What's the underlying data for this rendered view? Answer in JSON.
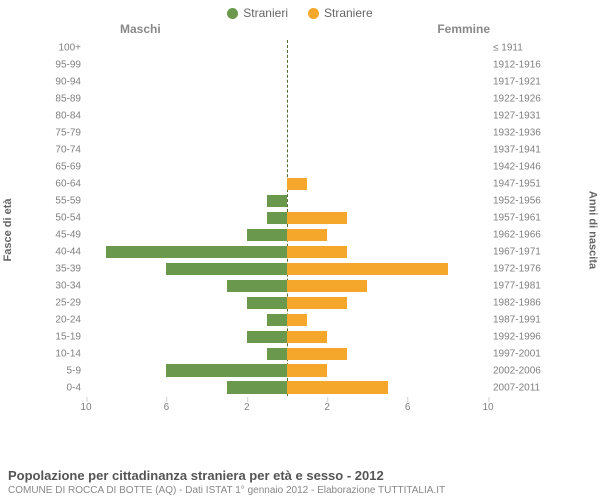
{
  "legend": {
    "male": "Stranieri",
    "female": "Straniere",
    "male_color": "#6a994e",
    "female_color": "#f4a72a"
  },
  "subtitles": {
    "left": "Maschi",
    "right": "Femmine"
  },
  "axis_labels": {
    "left": "Fasce di età",
    "right": "Anni di nascita"
  },
  "footer": {
    "title": "Popolazione per cittadinanza straniera per età e sesso - 2012",
    "sub": "COMUNE DI ROCCA DI BOTTE (AQ) - Dati ISTAT 1° gennaio 2012 - Elaborazione TUTTITALIA.IT"
  },
  "chart": {
    "type": "population-pyramid",
    "xlim": 10,
    "xticks": [
      10,
      6,
      2,
      2,
      6,
      10
    ],
    "background_color": "#ffffff",
    "grid_color": "#e0e0e0",
    "rows": [
      {
        "age": "100+",
        "birth": "≤ 1911",
        "m": 0,
        "f": 0
      },
      {
        "age": "95-99",
        "birth": "1912-1916",
        "m": 0,
        "f": 0
      },
      {
        "age": "90-94",
        "birth": "1917-1921",
        "m": 0,
        "f": 0
      },
      {
        "age": "85-89",
        "birth": "1922-1926",
        "m": 0,
        "f": 0
      },
      {
        "age": "80-84",
        "birth": "1927-1931",
        "m": 0,
        "f": 0
      },
      {
        "age": "75-79",
        "birth": "1932-1936",
        "m": 0,
        "f": 0
      },
      {
        "age": "70-74",
        "birth": "1937-1941",
        "m": 0,
        "f": 0
      },
      {
        "age": "65-69",
        "birth": "1942-1946",
        "m": 0,
        "f": 0
      },
      {
        "age": "60-64",
        "birth": "1947-1951",
        "m": 0,
        "f": 1
      },
      {
        "age": "55-59",
        "birth": "1952-1956",
        "m": 1,
        "f": 0
      },
      {
        "age": "50-54",
        "birth": "1957-1961",
        "m": 1,
        "f": 3
      },
      {
        "age": "45-49",
        "birth": "1962-1966",
        "m": 2,
        "f": 2
      },
      {
        "age": "40-44",
        "birth": "1967-1971",
        "m": 9,
        "f": 3
      },
      {
        "age": "35-39",
        "birth": "1972-1976",
        "m": 6,
        "f": 8
      },
      {
        "age": "30-34",
        "birth": "1977-1981",
        "m": 3,
        "f": 4
      },
      {
        "age": "25-29",
        "birth": "1982-1986",
        "m": 2,
        "f": 3
      },
      {
        "age": "20-24",
        "birth": "1987-1991",
        "m": 1,
        "f": 1
      },
      {
        "age": "15-19",
        "birth": "1992-1996",
        "m": 2,
        "f": 2
      },
      {
        "age": "10-14",
        "birth": "1997-2001",
        "m": 1,
        "f": 3
      },
      {
        "age": "5-9",
        "birth": "2002-2006",
        "m": 6,
        "f": 2
      },
      {
        "age": "0-4",
        "birth": "2007-2011",
        "m": 3,
        "f": 5
      }
    ]
  }
}
